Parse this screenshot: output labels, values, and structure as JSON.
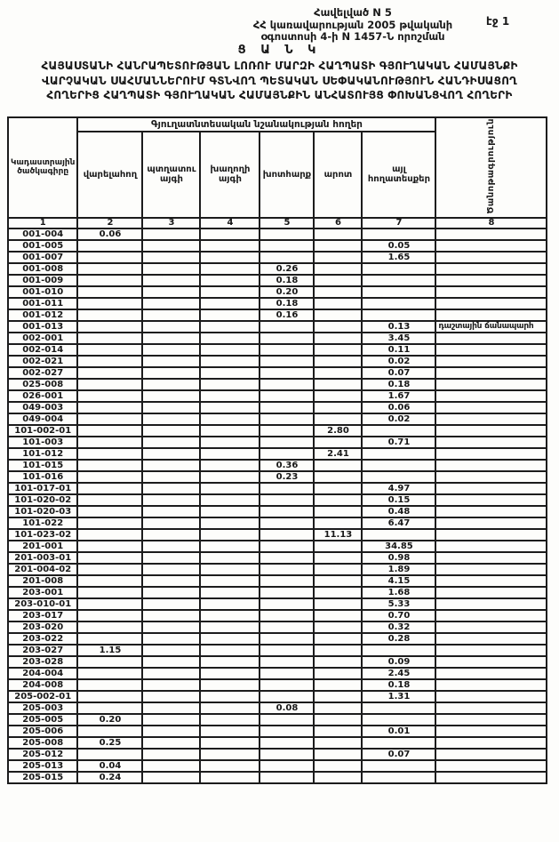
{
  "page": {
    "annex_line1": "Հավելված N 5",
    "annex_line2": "ՀՀ կառավարության 2005 թվականի",
    "annex_line3": "օգոստոսի 4-ի N 1457-Ն որոշման",
    "page_number": "էջ 1",
    "list_title": "Ց Ա Ն Կ",
    "title_line1": "ՀԱՅԱՍՏԱՆԻ ՀԱՆՐԱՊԵՏՈՒԹՅԱՆ ԼՈՌՈՒ ՄԱՐԶԻ ՀԱՂՊԱՏԻ ԳՅՈՒՂԱԿԱՆ ՀԱՄԱՅՆՔԻ",
    "title_line2": "ՎԱՐՉԱԿԱՆ ՍԱՀՄԱՆՆԵՐՈՒՄ ԳՏՆՎՈՂ ՊԵՏԱԿԱՆ ՍԵՓԱԿԱՆՈՒԹՅՈՒՆ ՀԱՆԴԻՍԱՑՈՂ",
    "title_line3": "ՀՈՂԵՐԻՑ ՀԱՂՊԱՏԻ ԳՅՈՒՂԱԿԱՆ ՀԱՄԱՅՆՔԻՆ ԱՆՀԱՏՈՒՅՑ ՓՈԽԱՆՑՎՈՂ ՀՈՂԵՐԻ"
  },
  "table": {
    "group_header": "Գյուղատնտեսական նշանակության հողեր",
    "col_headers": {
      "code": "Կադաստրային ծածկագիրը",
      "arable": "վարելահող",
      "orchard": "պտղատու այգի",
      "vineyard": "խաղողի այգի",
      "hayfield": "խոտհարք",
      "pasture": "արոտ",
      "other": "այլ հողատեսքեր",
      "note": "Ծանոթագրություն"
    },
    "col_numbers": [
      "1",
      "2",
      "3",
      "4",
      "5",
      "6",
      "7",
      "8"
    ],
    "rows": [
      [
        "001-004",
        "0.06",
        "",
        "",
        "",
        "",
        "",
        ""
      ],
      [
        "001-005",
        "",
        "",
        "",
        "",
        "",
        "0.05",
        ""
      ],
      [
        "001-007",
        "",
        "",
        "",
        "",
        "",
        "1.65",
        ""
      ],
      [
        "001-008",
        "",
        "",
        "",
        "0.26",
        "",
        "",
        ""
      ],
      [
        "001-009",
        "",
        "",
        "",
        "0.18",
        "",
        "",
        ""
      ],
      [
        "001-010",
        "",
        "",
        "",
        "0.20",
        "",
        "",
        ""
      ],
      [
        "001-011",
        "",
        "",
        "",
        "0.18",
        "",
        "",
        ""
      ],
      [
        "001-012",
        "",
        "",
        "",
        "0.16",
        "",
        "",
        ""
      ],
      [
        "001-013",
        "",
        "",
        "",
        "",
        "",
        "0.13",
        "դաշտային ճանապարհ"
      ],
      [
        "002-001",
        "",
        "",
        "",
        "",
        "",
        "3.45",
        ""
      ],
      [
        "002-014",
        "",
        "",
        "",
        "",
        "",
        "0.11",
        ""
      ],
      [
        "002-021",
        "",
        "",
        "",
        "",
        "",
        "0.02",
        ""
      ],
      [
        "002-027",
        "",
        "",
        "",
        "",
        "",
        "0.07",
        ""
      ],
      [
        "025-008",
        "",
        "",
        "",
        "",
        "",
        "0.18",
        ""
      ],
      [
        "026-001",
        "",
        "",
        "",
        "",
        "",
        "1.67",
        ""
      ],
      [
        "049-003",
        "",
        "",
        "",
        "",
        "",
        "0.06",
        ""
      ],
      [
        "049-004",
        "",
        "",
        "",
        "",
        "",
        "0.02",
        ""
      ],
      [
        "101-002-01",
        "",
        "",
        "",
        "",
        "2.80",
        "",
        ""
      ],
      [
        "101-003",
        "",
        "",
        "",
        "",
        "",
        "0.71",
        ""
      ],
      [
        "101-012",
        "",
        "",
        "",
        "",
        "2.41",
        "",
        ""
      ],
      [
        "101-015",
        "",
        "",
        "",
        "0.36",
        "",
        "",
        ""
      ],
      [
        "101-016",
        "",
        "",
        "",
        "0.23",
        "",
        "",
        ""
      ],
      [
        "101-017-01",
        "",
        "",
        "",
        "",
        "",
        "4.97",
        ""
      ],
      [
        "101-020-02",
        "",
        "",
        "",
        "",
        "",
        "0.15",
        ""
      ],
      [
        "101-020-03",
        "",
        "",
        "",
        "",
        "",
        "0.48",
        ""
      ],
      [
        "101-022",
        "",
        "",
        "",
        "",
        "",
        "6.47",
        ""
      ],
      [
        "101-023-02",
        "",
        "",
        "",
        "",
        "11.13",
        "",
        ""
      ],
      [
        "201-001",
        "",
        "",
        "",
        "",
        "",
        "34.85",
        ""
      ],
      [
        "201-003-01",
        "",
        "",
        "",
        "",
        "",
        "0.98",
        ""
      ],
      [
        "201-004-02",
        "",
        "",
        "",
        "",
        "",
        "1.89",
        ""
      ],
      [
        "201-008",
        "",
        "",
        "",
        "",
        "",
        "4.15",
        ""
      ],
      [
        "203-001",
        "",
        "",
        "",
        "",
        "",
        "1.68",
        ""
      ],
      [
        "203-010-01",
        "",
        "",
        "",
        "",
        "",
        "5.33",
        ""
      ],
      [
        "203-017",
        "",
        "",
        "",
        "",
        "",
        "0.70",
        ""
      ],
      [
        "203-020",
        "",
        "",
        "",
        "",
        "",
        "0.32",
        ""
      ],
      [
        "203-022",
        "",
        "",
        "",
        "",
        "",
        "0.28",
        ""
      ],
      [
        "203-027",
        "1.15",
        "",
        "",
        "",
        "",
        "",
        ""
      ],
      [
        "203-028",
        "",
        "",
        "",
        "",
        "",
        "0.09",
        ""
      ],
      [
        "204-004",
        "",
        "",
        "",
        "",
        "",
        "2.45",
        ""
      ],
      [
        "204-008",
        "",
        "",
        "",
        "",
        "",
        "0.18",
        ""
      ],
      [
        "205-002-01",
        "",
        "",
        "",
        "",
        "",
        "1.31",
        ""
      ],
      [
        "205-003",
        "",
        "",
        "",
        "0.08",
        "",
        "",
        ""
      ],
      [
        "205-005",
        "0.20",
        "",
        "",
        "",
        "",
        "",
        ""
      ],
      [
        "205-006",
        "",
        "",
        "",
        "",
        "",
        "0.01",
        ""
      ],
      [
        "205-008",
        "0.25",
        "",
        "",
        "",
        "",
        "",
        ""
      ],
      [
        "205-012",
        "",
        "",
        "",
        "",
        "",
        "0.07",
        ""
      ],
      [
        "205-013",
        "0.04",
        "",
        "",
        "",
        "",
        "",
        ""
      ],
      [
        "205-015",
        "0.24",
        "",
        "",
        "",
        "",
        "",
        ""
      ]
    ]
  }
}
